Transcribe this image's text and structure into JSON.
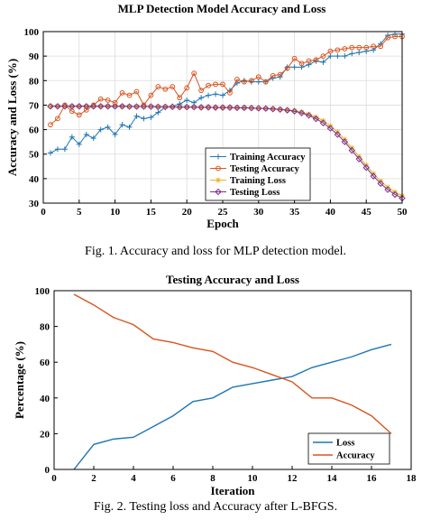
{
  "figure1": {
    "caption": "Fig. 1.  Accuracy and loss for MLP detection model.",
    "chart_data": {
      "type": "line",
      "title": "MLP Detection Model Accuracy and Loss",
      "xlabel": "Epoch",
      "ylabel": "Accuracy and Loss (%)",
      "xlim": [
        0,
        50
      ],
      "ylim": [
        30,
        100
      ],
      "xticks": [
        "0",
        "5",
        "10",
        "15",
        "20",
        "25",
        "30",
        "35",
        "40",
        "45",
        "50"
      ],
      "yticks": [
        "30",
        "40",
        "50",
        "60",
        "70",
        "80",
        "90",
        "100"
      ],
      "grid": true,
      "legend": "bottom-right",
      "x": [
        1,
        2,
        3,
        4,
        5,
        6,
        7,
        8,
        9,
        10,
        11,
        12,
        13,
        14,
        15,
        16,
        17,
        18,
        19,
        20,
        21,
        22,
        23,
        24,
        25,
        26,
        27,
        28,
        29,
        30,
        31,
        32,
        33,
        34,
        35,
        36,
        37,
        38,
        39,
        40,
        41,
        42,
        43,
        44,
        45,
        46,
        47,
        48,
        49,
        50
      ],
      "series": [
        {
          "name": "Training Accuracy",
          "color": "#1f77b4",
          "marker": "plus",
          "values": [
            50.5,
            52,
            52,
            57,
            54,
            58,
            56.5,
            60,
            61,
            58,
            62,
            61,
            65.5,
            64.5,
            65,
            67,
            69,
            69.5,
            70.5,
            72,
            71,
            73,
            74,
            74.5,
            74,
            76,
            79,
            80,
            79.5,
            79.5,
            79.5,
            81,
            81.5,
            85.5,
            85.5,
            85.5,
            86.5,
            88,
            87.5,
            90,
            90,
            90,
            91,
            91.5,
            92,
            92.5,
            95,
            98.5,
            99,
            99
          ]
        },
        {
          "name": "Testing Accuracy",
          "color": "#d9541e",
          "marker": "circle",
          "values": [
            62,
            64.5,
            70,
            67.5,
            66,
            68,
            70,
            72.5,
            72,
            71,
            75,
            74,
            75.5,
            70,
            74,
            77.5,
            76.5,
            77.5,
            73,
            77,
            83,
            76,
            78,
            78.5,
            78.5,
            75,
            80.5,
            79.5,
            80,
            81.5,
            79.5,
            82,
            82.5,
            85,
            89,
            87,
            88,
            88.5,
            90,
            92,
            92.5,
            93,
            93.5,
            93.5,
            93.5,
            94,
            94,
            97.5,
            98,
            98
          ]
        },
        {
          "name": "Training Loss",
          "color": "#edb120",
          "marker": "star",
          "values": [
            69.5,
            69.5,
            69.5,
            69.5,
            69.5,
            69.5,
            69.5,
            69.5,
            69.5,
            69.5,
            69.5,
            69.4,
            69.4,
            69.4,
            69.4,
            69.3,
            69.3,
            69.3,
            69.2,
            69.2,
            69.2,
            69.1,
            69.1,
            69.0,
            69.0,
            69.0,
            68.9,
            68.9,
            68.8,
            68.7,
            68.6,
            68.5,
            68.3,
            68.0,
            67.7,
            67.1,
            66.3,
            65.1,
            63.6,
            61.5,
            59,
            56,
            52.5,
            49,
            45.5,
            42,
            39,
            36.5,
            34.5,
            33
          ]
        },
        {
          "name": "Testing Loss",
          "color": "#7e2f8e",
          "marker": "diamond",
          "values": [
            69.5,
            69.5,
            69.5,
            69.5,
            69.5,
            69.5,
            69.5,
            69.5,
            69.5,
            69.5,
            69.5,
            69.4,
            69.4,
            69.4,
            69.4,
            69.3,
            69.3,
            69.3,
            69.2,
            69.2,
            69.2,
            69.1,
            69.1,
            69.0,
            69.0,
            69.0,
            68.9,
            68.9,
            68.8,
            68.7,
            68.6,
            68.4,
            68.2,
            67.9,
            67.5,
            66.8,
            65.8,
            64.4,
            62.7,
            60.5,
            58,
            55,
            51.5,
            48,
            44.5,
            41,
            38,
            35.5,
            33.5,
            32
          ]
        }
      ]
    }
  },
  "figure2": {
    "caption": "Fig. 2.  Testing loss and Accuracy after L-BFGS.",
    "chart_data": {
      "type": "line",
      "title": "Testing Accuracy and Loss",
      "xlabel": "Iteration",
      "ylabel": "Percentage (%)",
      "xlim": [
        0,
        18
      ],
      "ylim": [
        0,
        100
      ],
      "xticks": [
        "0",
        "2",
        "4",
        "6",
        "8",
        "10",
        "12",
        "14",
        "16",
        "18"
      ],
      "yticks": [
        "0",
        "20",
        "40",
        "60",
        "80",
        "100"
      ],
      "grid": false,
      "legend": "bottom-right",
      "x": [
        1,
        2,
        3,
        4,
        5,
        6,
        7,
        8,
        9,
        10,
        11,
        12,
        13,
        14,
        15,
        16,
        17
      ],
      "series": [
        {
          "name": "Loss",
          "color": "#1f77b4",
          "values": [
            0,
            14,
            17,
            18,
            24,
            30,
            38,
            40,
            46,
            48,
            50,
            52,
            57,
            60,
            63,
            67,
            70
          ]
        },
        {
          "name": "Accuracy",
          "color": "#d9541e",
          "values": [
            98,
            92,
            85,
            81,
            73,
            71,
            68,
            66,
            60,
            57,
            53,
            49,
            40,
            40,
            36,
            30,
            20
          ]
        }
      ]
    }
  }
}
